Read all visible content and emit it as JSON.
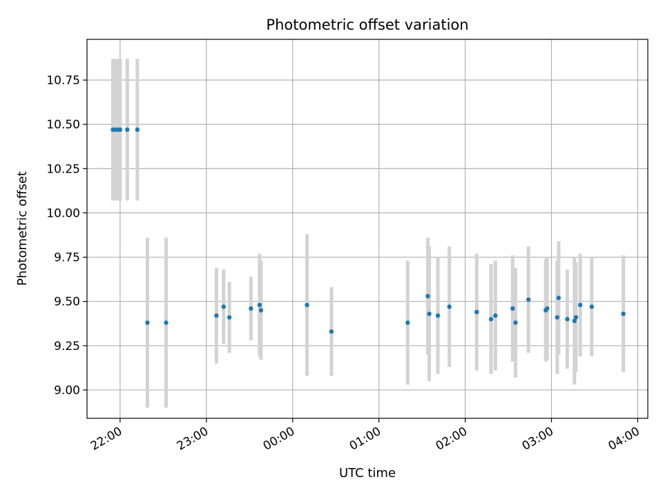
{
  "chart_data": {
    "type": "scatter",
    "title": "Photometric offset variation",
    "xlabel": "UTC time",
    "ylabel": "Photometric offset",
    "x_tick_labels": [
      "22:00",
      "23:00",
      "00:00",
      "01:00",
      "02:00",
      "03:00",
      "04:00"
    ],
    "y_tick_labels": [
      "9.00",
      "9.25",
      "9.50",
      "9.75",
      "10.00",
      "10.25",
      "10.50",
      "10.75"
    ],
    "xlim": [
      "21:37",
      "04:07"
    ],
    "ylim": [
      8.84,
      10.98
    ],
    "grid": true,
    "marker_color": "#1f77b4",
    "errorbar_color": "#d3d3d3",
    "points": [
      {
        "x": "21:55",
        "y": 10.47,
        "err": 0.4
      },
      {
        "x": "21:57",
        "y": 10.47,
        "err": 0.4
      },
      {
        "x": "21:59",
        "y": 10.47,
        "err": 0.4
      },
      {
        "x": "22:00",
        "y": 10.47,
        "err": 0.4
      },
      {
        "x": "22:05",
        "y": 10.47,
        "err": 0.4
      },
      {
        "x": "22:12",
        "y": 10.47,
        "err": 0.4
      },
      {
        "x": "22:19",
        "y": 9.38,
        "err": 0.48
      },
      {
        "x": "22:32",
        "y": 9.38,
        "err": 0.48
      },
      {
        "x": "23:07",
        "y": 9.42,
        "err": 0.27
      },
      {
        "x": "23:12",
        "y": 9.47,
        "err": 0.21
      },
      {
        "x": "23:16",
        "y": 9.41,
        "err": 0.2
      },
      {
        "x": "23:31",
        "y": 9.46,
        "err": 0.18
      },
      {
        "x": "23:37",
        "y": 9.48,
        "err": 0.29
      },
      {
        "x": "23:38",
        "y": 9.45,
        "err": 0.28
      },
      {
        "x": "00:10",
        "y": 9.48,
        "err": 0.4
      },
      {
        "x": "00:27",
        "y": 9.33,
        "err": 0.25
      },
      {
        "x": "01:20",
        "y": 9.38,
        "err": 0.35
      },
      {
        "x": "01:34",
        "y": 9.53,
        "err": 0.33
      },
      {
        "x": "01:35",
        "y": 9.43,
        "err": 0.38
      },
      {
        "x": "01:41",
        "y": 9.42,
        "err": 0.33
      },
      {
        "x": "01:49",
        "y": 9.47,
        "err": 0.34
      },
      {
        "x": "02:08",
        "y": 9.44,
        "err": 0.33
      },
      {
        "x": "02:18",
        "y": 9.4,
        "err": 0.31
      },
      {
        "x": "02:21",
        "y": 9.42,
        "err": 0.31
      },
      {
        "x": "02:33",
        "y": 9.46,
        "err": 0.3
      },
      {
        "x": "02:35",
        "y": 9.38,
        "err": 0.31
      },
      {
        "x": "02:44",
        "y": 9.51,
        "err": 0.3
      },
      {
        "x": "02:56",
        "y": 9.45,
        "err": 0.29
      },
      {
        "x": "02:57",
        "y": 9.46,
        "err": 0.29
      },
      {
        "x": "03:04",
        "y": 9.41,
        "err": 0.32
      },
      {
        "x": "03:05",
        "y": 9.52,
        "err": 0.32
      },
      {
        "x": "03:11",
        "y": 9.4,
        "err": 0.28
      },
      {
        "x": "03:16",
        "y": 9.39,
        "err": 0.36
      },
      {
        "x": "03:17",
        "y": 9.41,
        "err": 0.31
      },
      {
        "x": "03:20",
        "y": 9.48,
        "err": 0.29
      },
      {
        "x": "03:28",
        "y": 9.47,
        "err": 0.28
      },
      {
        "x": "03:50",
        "y": 9.43,
        "err": 0.33
      }
    ]
  }
}
